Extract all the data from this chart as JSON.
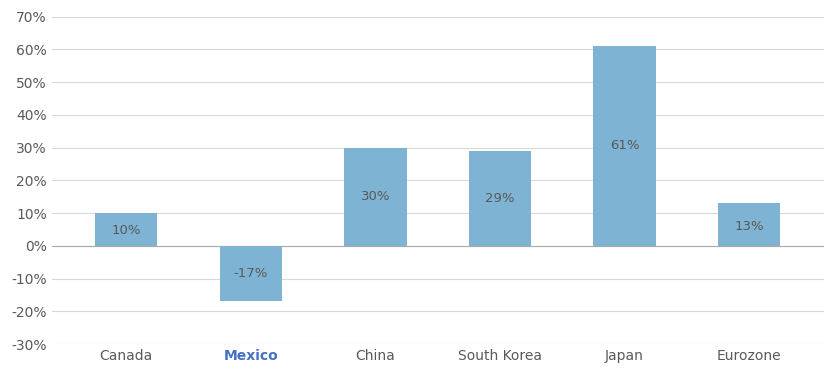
{
  "categories": [
    "Canada",
    "Mexico",
    "China",
    "South Korea",
    "Japan",
    "Eurozone"
  ],
  "values": [
    10,
    -17,
    30,
    29,
    61,
    13
  ],
  "bar_color": "#7EB3D4",
  "label_color": "#595959",
  "mexico_label_color": "#4472C4",
  "background_color": "#ffffff",
  "ylim": [
    -30,
    70
  ],
  "yticks": [
    -30,
    -20,
    -10,
    0,
    10,
    20,
    30,
    40,
    50,
    60,
    70
  ],
  "grid_color": "#d9d9d9",
  "zero_line_color": "#aaaaaa",
  "tick_fontsize": 10,
  "label_fontsize": 10,
  "bar_label_fontsize": 9.5
}
